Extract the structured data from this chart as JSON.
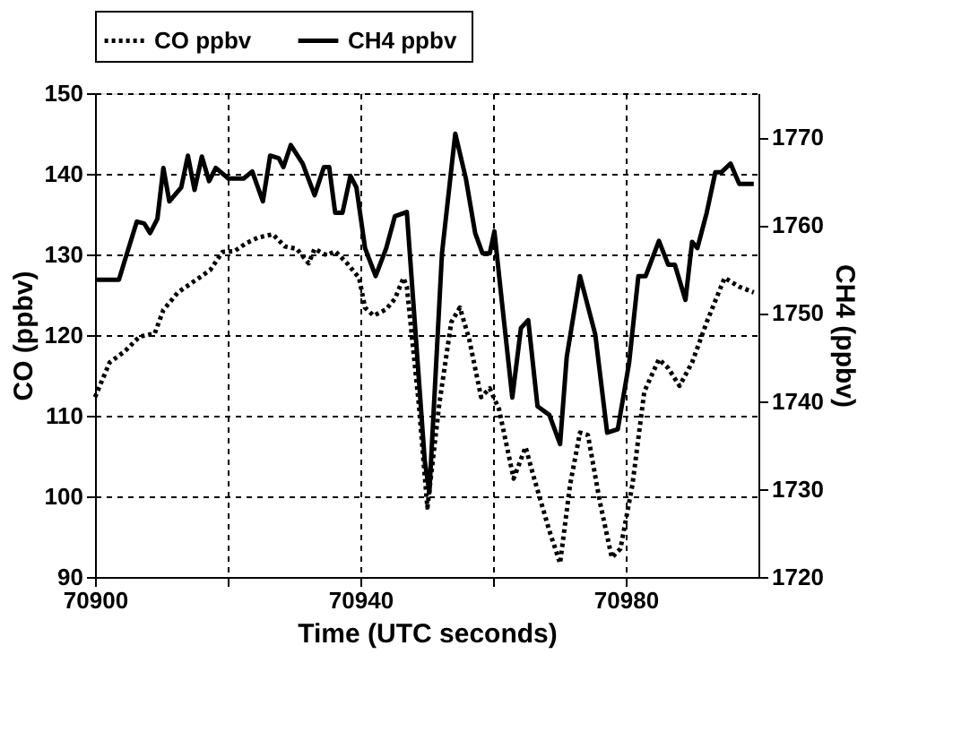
{
  "chart_data": {
    "type": "line",
    "xlabel": "Time (UTC seconds)",
    "ylabel": "CO (ppbv)",
    "y2label": "CH4 (ppbv)",
    "xlim": [
      70900,
      71000
    ],
    "xticks": [
      70900,
      {
        "value": 70920,
        "label": null
      },
      70940,
      {
        "value": 70960,
        "label": null
      },
      70980
    ],
    "ylim": [
      90,
      150
    ],
    "yticks": [
      90,
      100,
      110,
      120,
      130,
      140,
      150
    ],
    "y2lim": [
      1720,
      1775
    ],
    "y2ticks": [
      1720,
      1730,
      1740,
      1750,
      1760,
      1770
    ],
    "grid": true,
    "legend": "top",
    "marker": "none",
    "series": [
      {
        "name": "CO ppbv",
        "color": "#000000",
        "line_style": "dotted",
        "axis": "y",
        "x": [
          70900,
          70902.2,
          70904.5,
          70906.7,
          70909,
          70910.3,
          70912.5,
          70915.7,
          70917.4,
          70919.2,
          70921,
          70922.8,
          70924.6,
          70926.8,
          70928.6,
          70930.4,
          70932.2,
          70933.1,
          70934.9,
          70936.2,
          70938,
          70939.8,
          70940.7,
          70942,
          70943.9,
          70945.2,
          70946.5,
          70947,
          70948.8,
          70950.1,
          70951.9,
          70953.7,
          70955,
          70956.4,
          70958.2,
          70959.5,
          70960.9,
          70963.1,
          70964.9,
          70966.2,
          70968.5,
          70970.1,
          70971.6,
          70973.1,
          70974.3,
          70976.1,
          70977.9,
          70979.2,
          70981,
          70982.8,
          70985,
          70986.4,
          70988.1,
          70990,
          70992.2,
          70994.9,
          70997.1,
          70999.3
        ],
        "values": [
          112.3,
          116.6,
          118,
          119.8,
          120.2,
          123.1,
          125.3,
          127.1,
          128.1,
          130.3,
          130.4,
          131.4,
          132.1,
          132.5,
          131,
          130.7,
          128.9,
          130.7,
          129.9,
          130.4,
          128.9,
          127.1,
          123.4,
          122.4,
          123.2,
          124.5,
          127.1,
          126,
          111.5,
          98.6,
          111.5,
          121.6,
          123.4,
          119.5,
          112.3,
          113.4,
          110.8,
          102.2,
          106.1,
          102.2,
          95.7,
          91.7,
          101.4,
          107.9,
          107.6,
          99.3,
          92.4,
          93.5,
          101.4,
          113,
          117,
          115.9,
          113.7,
          116.6,
          121.6,
          127.1,
          126,
          125.3
        ]
      },
      {
        "name": "CH4  ppbv",
        "color": "#000000",
        "line_style": "solid",
        "axis": "y2",
        "x": [
          70900,
          70903.6,
          70904.7,
          70906.3,
          70907.4,
          70908.3,
          70909.4,
          70910.3,
          70911.2,
          70913,
          70914,
          70915,
          70916.1,
          70917.2,
          70918.2,
          70920.1,
          70922.4,
          70923.7,
          70925.3,
          70926.4,
          70927.7,
          70928.4,
          70929.5,
          70931.3,
          70933.1,
          70934.5,
          70935.3,
          70936.2,
          70937.3,
          70938.5,
          70939.4,
          70940.7,
          70942.3,
          70943.9,
          70945.2,
          70947,
          70949.7,
          70950.4,
          70952.3,
          70954.3,
          70955.9,
          70957.3,
          70958.4,
          70959.5,
          70960.2,
          70961.3,
          70962.9,
          70964.2,
          70965.3,
          70966.7,
          70968.5,
          70970.1,
          70971.1,
          70973.1,
          70975.4,
          70977.2,
          70978.8,
          70980.5,
          70981.9,
          70983,
          70985,
          70986.4,
          70987.4,
          70989,
          70990,
          70990.8,
          70992.2,
          70993.5,
          70994.4,
          70995.8,
          70997.1,
          70999.3
        ],
        "values": [
          1753.8,
          1753.8,
          1756.5,
          1760.4,
          1760.2,
          1759.1,
          1760.7,
          1766.5,
          1762.7,
          1764.3,
          1767.9,
          1764,
          1767.8,
          1765,
          1766.5,
          1765.3,
          1765.3,
          1766.1,
          1762.7,
          1767.9,
          1767.6,
          1766.6,
          1769.1,
          1767,
          1763.4,
          1766.6,
          1766.6,
          1761.4,
          1761.4,
          1765.6,
          1764.3,
          1757.4,
          1754.2,
          1757.4,
          1761,
          1761.5,
          1733.2,
          1729.6,
          1756.8,
          1770.4,
          1765.3,
          1759.1,
          1756.8,
          1756.8,
          1759.3,
          1751.5,
          1740.4,
          1748.3,
          1749.2,
          1739.4,
          1738.4,
          1735.1,
          1745,
          1754.2,
          1747.6,
          1736.4,
          1736.8,
          1744.3,
          1754.2,
          1754.2,
          1758.2,
          1755.5,
          1755.5,
          1751.5,
          1758.1,
          1757.4,
          1761.4,
          1766,
          1766,
          1767,
          1764.7,
          1764.7
        ]
      }
    ]
  }
}
